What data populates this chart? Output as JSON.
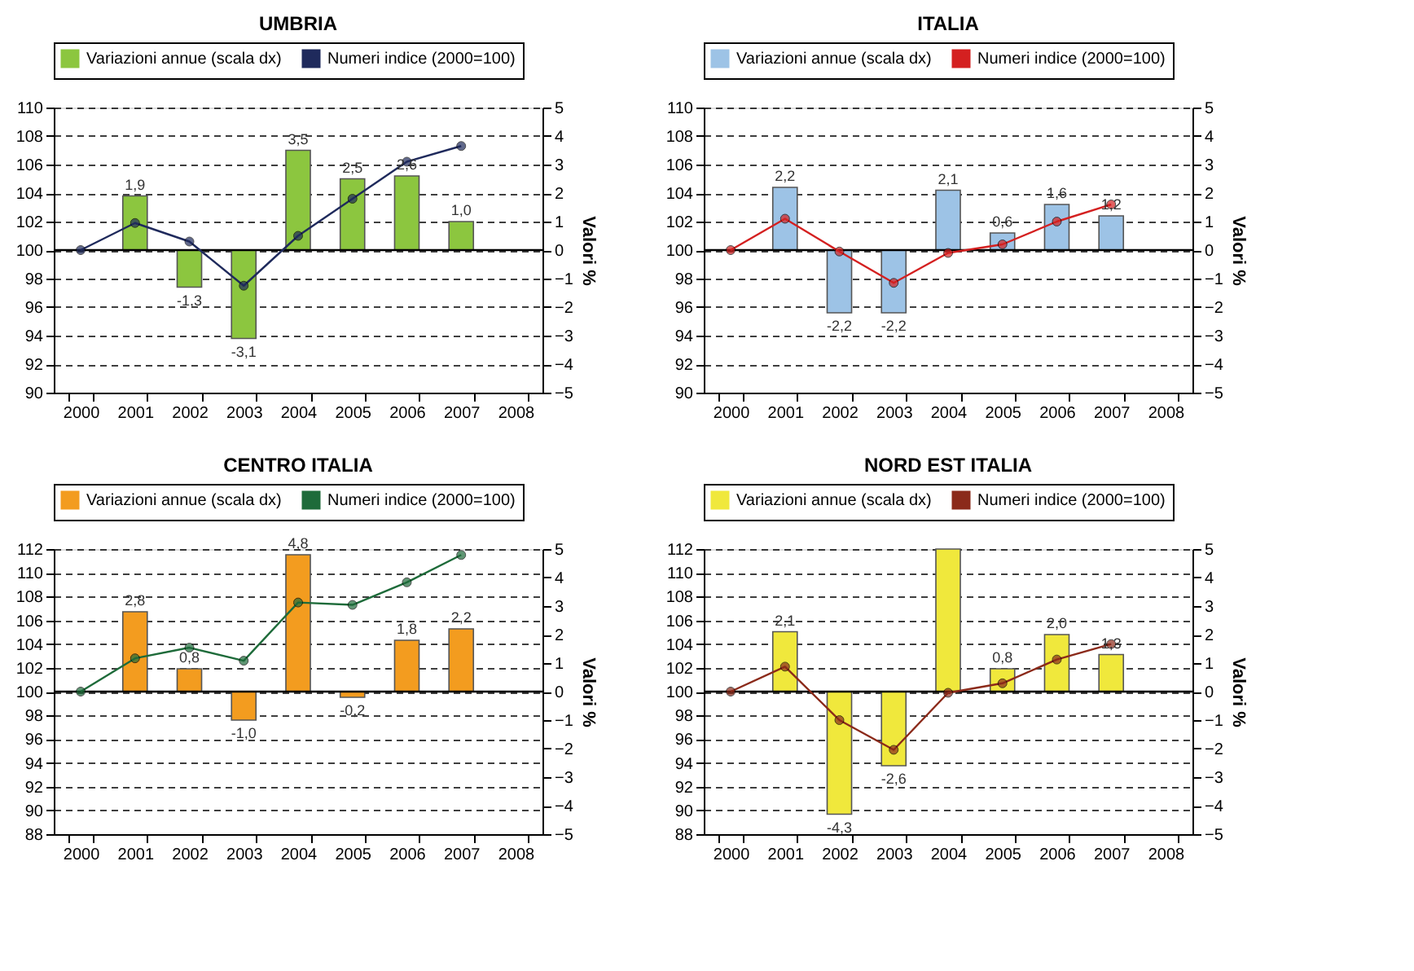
{
  "chart_data": [
    {
      "type": "bar",
      "title": "UMBRIA",
      "categories": [
        "2000",
        "2001",
        "2002",
        "2003",
        "2004",
        "2005",
        "2006",
        "2007",
        "2008"
      ],
      "series": [
        {
          "name": "Variazioni annue (scala dx)",
          "type": "bar",
          "axis": "y2",
          "color": "#8cc63f",
          "values": [
            null,
            1.9,
            -1.3,
            -3.1,
            3.5,
            2.5,
            2.6,
            1.0,
            null
          ],
          "value_labels": [
            null,
            "1,9",
            "-1,3",
            "-3,1",
            "3,5",
            "2,5",
            "2,6",
            "1,0",
            null
          ]
        },
        {
          "name": "Numeri indice (2000=100)",
          "type": "line",
          "color": "#1f2a5c",
          "marker": "circle",
          "values": [
            100,
            101.9,
            100.6,
            97.5,
            101.0,
            103.6,
            106.2,
            107.3,
            null
          ]
        }
      ],
      "ylim": [
        90,
        110
      ],
      "yticks": [
        90,
        92,
        94,
        96,
        98,
        100,
        102,
        104,
        106,
        108,
        110
      ],
      "y2lim": [
        -5,
        5
      ],
      "y2ticks": [
        -5,
        -4,
        -3,
        -2,
        -1,
        0,
        1,
        2,
        3,
        4,
        5
      ],
      "y2label": "Valori %",
      "grid": "y",
      "legend": "top",
      "ref_lines": [
        {
          "axis": "y2",
          "value": 0
        }
      ]
    },
    {
      "type": "bar",
      "title": "ITALIA",
      "categories": [
        "2000",
        "2001",
        "2002",
        "2003",
        "2004",
        "2005",
        "2006",
        "2007",
        "2008"
      ],
      "series": [
        {
          "name": "Variazioni annue (scala dx)",
          "type": "bar",
          "axis": "y2",
          "color": "#9dc3e6",
          "values": [
            null,
            2.2,
            -2.2,
            -2.2,
            2.1,
            0.6,
            1.6,
            1.2,
            null
          ],
          "value_labels": [
            null,
            "2,2",
            "-2,2",
            "-2,2",
            "2,1",
            "0,6",
            "1,6",
            "1,2",
            null
          ]
        },
        {
          "name": "Numeri indice (2000=100)",
          "type": "line",
          "color": "#d42020",
          "marker": "circle",
          "values": [
            100,
            102.2,
            99.9,
            97.7,
            99.8,
            100.4,
            102.0,
            103.2,
            null
          ]
        }
      ],
      "ylim": [
        90,
        110
      ],
      "yticks": [
        90,
        92,
        94,
        96,
        98,
        100,
        102,
        104,
        106,
        108,
        110
      ],
      "y2lim": [
        -5,
        5
      ],
      "y2ticks": [
        -5,
        -4,
        -3,
        -2,
        -1,
        0,
        1,
        2,
        3,
        4,
        5
      ],
      "y2label": "Valori %",
      "grid": "y",
      "legend": "top",
      "ref_lines": [
        {
          "axis": "y2",
          "value": 0
        }
      ]
    },
    {
      "type": "bar",
      "title": "CENTRO ITALIA",
      "categories": [
        "2000",
        "2001",
        "2002",
        "2003",
        "2004",
        "2005",
        "2006",
        "2007",
        "2008"
      ],
      "series": [
        {
          "name": "Variazioni annue (scala dx)",
          "type": "bar",
          "axis": "y2",
          "color": "#f39c1f",
          "values": [
            null,
            2.8,
            0.8,
            -1.0,
            4.8,
            -0.2,
            1.8,
            2.2,
            null
          ],
          "value_labels": [
            null,
            "2,8",
            "0,8",
            "-1,0",
            "4,8",
            "-0,2",
            "1,8",
            "2,2",
            null
          ]
        },
        {
          "name": "Numeri indice (2000=100)",
          "type": "line",
          "color": "#1e6b3a",
          "marker": "circle",
          "values": [
            100,
            102.8,
            103.7,
            102.6,
            107.5,
            107.3,
            109.2,
            111.5,
            null
          ]
        }
      ],
      "ylim": [
        88,
        112
      ],
      "yticks": [
        88,
        90,
        92,
        94,
        96,
        98,
        100,
        102,
        104,
        106,
        108,
        110,
        112
      ],
      "y2lim": [
        -5,
        5
      ],
      "y2ticks": [
        -5,
        -4,
        -3,
        -2,
        -1,
        0,
        1,
        2,
        3,
        4,
        5
      ],
      "y2label": "Valori %",
      "grid": "y",
      "legend": "top",
      "ref_lines": [
        {
          "axis": "y2",
          "value": 0
        }
      ]
    },
    {
      "type": "bar",
      "title": "NORD EST ITALIA",
      "categories": [
        "2000",
        "2001",
        "2002",
        "2003",
        "2004",
        "2005",
        "2006",
        "2007",
        "2008"
      ],
      "series": [
        {
          "name": "Variazioni annue (scala dx)",
          "type": "bar",
          "axis": "y2",
          "color": "#f0e83c",
          "values": [
            null,
            2.1,
            -4.3,
            -2.6,
            5.0,
            0.8,
            2.0,
            1.3,
            null
          ],
          "value_labels": [
            null,
            "2,1",
            "-4,3",
            "-2,6",
            null,
            "0,8",
            "2,0",
            "1,3",
            null
          ]
        },
        {
          "name": "Numeri indice (2000=100)",
          "type": "line",
          "color": "#8b2a1a",
          "marker": "circle",
          "values": [
            100,
            102.1,
            97.6,
            95.1,
            99.9,
            100.7,
            102.7,
            104.0,
            null
          ]
        }
      ],
      "ylim": [
        88,
        112
      ],
      "yticks": [
        88,
        90,
        92,
        94,
        96,
        98,
        100,
        102,
        104,
        106,
        108,
        110,
        112
      ],
      "y2lim": [
        -5,
        5
      ],
      "y2ticks": [
        -5,
        -4,
        -3,
        -2,
        -1,
        0,
        1,
        2,
        3,
        4,
        5
      ],
      "y2label": "Valori %",
      "grid": "y",
      "legend": "top",
      "ref_lines": [
        {
          "axis": "y2",
          "value": 0
        }
      ]
    }
  ]
}
